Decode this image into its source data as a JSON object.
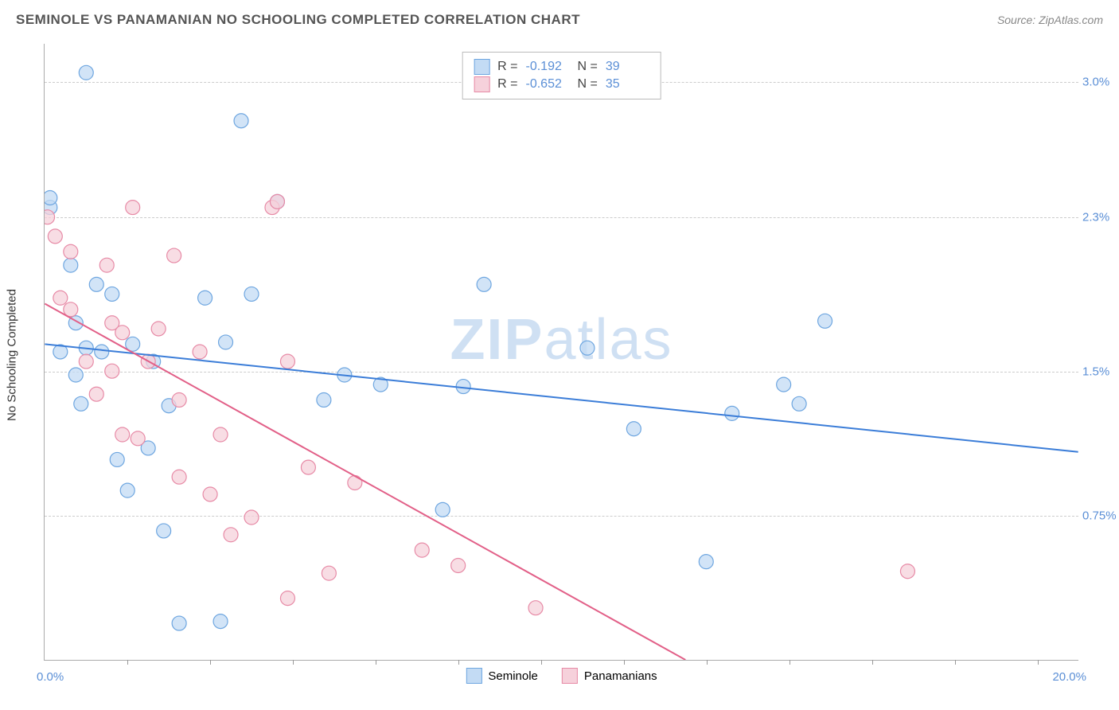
{
  "title": "SEMINOLE VS PANAMANIAN NO SCHOOLING COMPLETED CORRELATION CHART",
  "source": "Source: ZipAtlas.com",
  "y_axis_title": "No Schooling Completed",
  "watermark_bold": "ZIP",
  "watermark_light": "atlas",
  "chart": {
    "type": "scatter",
    "background_color": "#ffffff",
    "grid_color": "#cccccc",
    "axis_color": "#aaaaaa",
    "tick_label_color": "#5b8fd6",
    "xlim": [
      0.0,
      20.0
    ],
    "ylim": [
      0.0,
      3.2
    ],
    "xticks_pct": [
      0.08,
      0.16,
      0.24,
      0.32,
      0.4,
      0.48,
      0.56,
      0.64,
      0.72,
      0.8,
      0.88,
      0.96
    ],
    "yticks": [
      {
        "value": 0.75,
        "label": "0.75%"
      },
      {
        "value": 1.5,
        "label": "1.5%"
      },
      {
        "value": 2.3,
        "label": "2.3%"
      },
      {
        "value": 3.0,
        "label": "3.0%"
      }
    ],
    "xlabel_min": "0.0%",
    "xlabel_max": "20.0%",
    "marker_radius": 9,
    "marker_stroke_width": 1.2,
    "line_width": 2.0
  },
  "series": [
    {
      "name": "Seminole",
      "fill": "#c3dbf4",
      "stroke": "#6ea6e0",
      "line_color": "#3b7dd8",
      "r_value": "-0.192",
      "n_value": "39",
      "trend": {
        "x1": 0.0,
        "y1": 1.64,
        "x2": 20.0,
        "y2": 1.08
      },
      "points": [
        [
          0.1,
          2.35
        ],
        [
          0.1,
          2.4
        ],
        [
          0.3,
          1.6
        ],
        [
          0.5,
          2.05
        ],
        [
          0.6,
          1.75
        ],
        [
          0.8,
          1.62
        ],
        [
          0.6,
          1.48
        ],
        [
          0.7,
          1.33
        ],
        [
          0.8,
          3.05
        ],
        [
          1.0,
          1.95
        ],
        [
          1.1,
          1.6
        ],
        [
          1.3,
          1.9
        ],
        [
          1.4,
          1.04
        ],
        [
          1.6,
          0.88
        ],
        [
          1.7,
          1.64
        ],
        [
          2.0,
          1.1
        ],
        [
          2.1,
          1.55
        ],
        [
          2.3,
          0.67
        ],
        [
          2.4,
          1.32
        ],
        [
          2.6,
          0.19
        ],
        [
          3.1,
          1.88
        ],
        [
          3.4,
          0.2
        ],
        [
          3.5,
          1.65
        ],
        [
          3.8,
          2.8
        ],
        [
          4.0,
          1.9
        ],
        [
          4.5,
          2.38
        ],
        [
          5.4,
          1.35
        ],
        [
          5.8,
          1.48
        ],
        [
          6.5,
          1.43
        ],
        [
          7.7,
          0.78
        ],
        [
          8.1,
          1.42
        ],
        [
          8.5,
          1.95
        ],
        [
          10.5,
          1.62
        ],
        [
          11.4,
          1.2
        ],
        [
          12.8,
          0.51
        ],
        [
          13.3,
          1.28
        ],
        [
          14.3,
          1.43
        ],
        [
          15.1,
          1.76
        ],
        [
          14.6,
          1.33
        ]
      ]
    },
    {
      "name": "Panamanians",
      "fill": "#f6d1db",
      "stroke": "#e78aa6",
      "line_color": "#e26088",
      "r_value": "-0.652",
      "n_value": "35",
      "trend": {
        "x1": 0.0,
        "y1": 1.85,
        "x2": 12.4,
        "y2": 0.0
      },
      "points": [
        [
          0.05,
          2.3
        ],
        [
          0.2,
          2.2
        ],
        [
          0.3,
          1.88
        ],
        [
          0.5,
          2.12
        ],
        [
          0.5,
          1.82
        ],
        [
          0.8,
          1.55
        ],
        [
          1.0,
          1.38
        ],
        [
          1.2,
          2.05
        ],
        [
          1.3,
          1.75
        ],
        [
          1.3,
          1.5
        ],
        [
          1.5,
          1.7
        ],
        [
          1.5,
          1.17
        ],
        [
          1.7,
          2.35
        ],
        [
          1.8,
          1.15
        ],
        [
          2.0,
          1.55
        ],
        [
          2.2,
          1.72
        ],
        [
          2.5,
          2.1
        ],
        [
          2.6,
          1.35
        ],
        [
          2.6,
          0.95
        ],
        [
          3.0,
          1.6
        ],
        [
          3.2,
          0.86
        ],
        [
          3.4,
          1.17
        ],
        [
          3.6,
          0.65
        ],
        [
          4.0,
          0.74
        ],
        [
          4.4,
          2.35
        ],
        [
          4.5,
          2.38
        ],
        [
          4.7,
          0.32
        ],
        [
          4.7,
          1.55
        ],
        [
          5.1,
          1.0
        ],
        [
          5.5,
          0.45
        ],
        [
          6.0,
          0.92
        ],
        [
          7.3,
          0.57
        ],
        [
          8.0,
          0.49
        ],
        [
          9.5,
          0.27
        ],
        [
          16.7,
          0.46
        ]
      ]
    }
  ],
  "stats_labels": {
    "r": "R =",
    "n": "N ="
  },
  "bottom_legend": [
    "Seminole",
    "Panamanians"
  ]
}
